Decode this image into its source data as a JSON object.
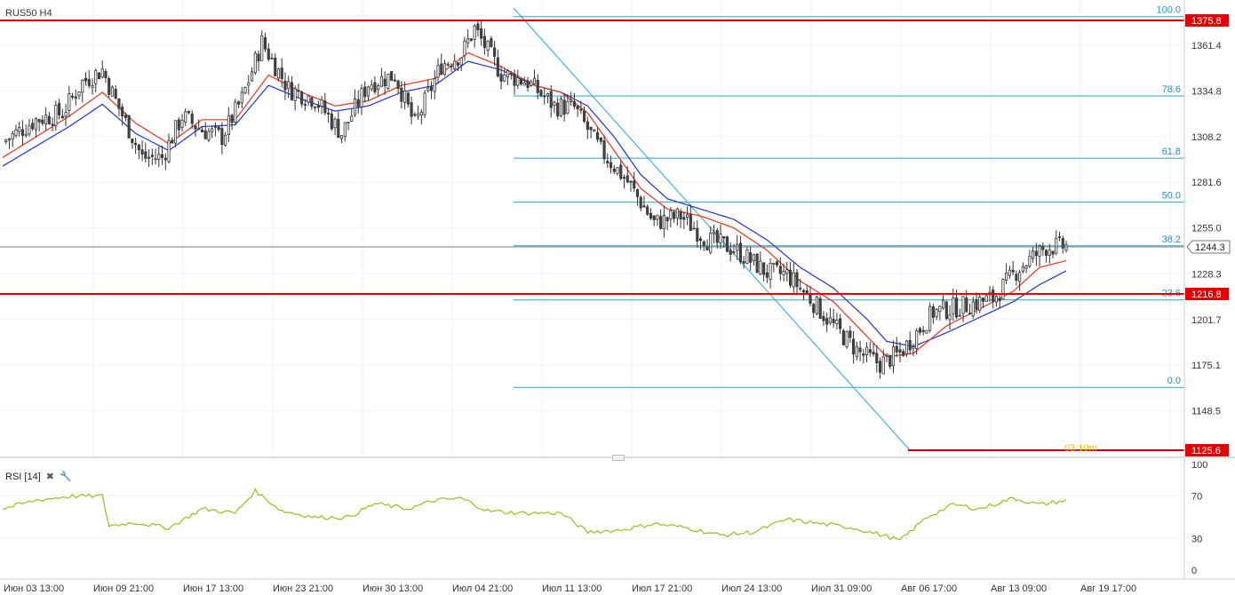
{
  "chart": {
    "symbol": "RUS50 H4",
    "current_price": "1244.3",
    "countdown": "03:10m"
  },
  "price_axis": {
    "ticks": [
      "1361.4",
      "1334.8",
      "1308.2",
      "1281.6",
      "1255.0",
      "1228.3",
      "1201.7",
      "1175.1",
      "1148.5"
    ],
    "resistance_label": "1375.8",
    "support_label": "1216.8",
    "low_label": "1125.6"
  },
  "fibonacci": {
    "levels": [
      {
        "label": "100.0",
        "value": 1378
      },
      {
        "label": "78.6",
        "value": 1331.8
      },
      {
        "label": "61.8",
        "value": 1295.6
      },
      {
        "label": "50.0",
        "value": 1270
      },
      {
        "label": "38.2",
        "value": 1244.6
      },
      {
        "label": "23.6",
        "value": 1213.1
      },
      {
        "label": "0.0",
        "value": 1162.2
      }
    ]
  },
  "time_axis": {
    "labels": [
      "Июн 03 13:00",
      "Июн 09 21:00",
      "Июн 17 13:00",
      "Июн 23 21:00",
      "Июн 30 13:00",
      "Июл 04 21:00",
      "Июл 11 13:00",
      "Июл 17 21:00",
      "Июл 24 13:00",
      "Июл 31 09:00",
      "Авг 06 17:00",
      "Авг 13 09:00",
      "Авг 19 17:00"
    ]
  },
  "rsi": {
    "title": "RSI [14]",
    "close_icon": "close-icon",
    "settings_icon": "wrench-icon",
    "ticks": [
      "100",
      "70",
      "30",
      "0"
    ],
    "levels": [
      70,
      30
    ]
  },
  "colors": {
    "bull_candle": "#ffffff",
    "bear_candle": "#444444",
    "candle_outline": "#333333",
    "ema_fast": "#e8321f",
    "ema_slow": "#2233cc",
    "fib_line": "#2aa4d0",
    "fib_label": "#2a90c0",
    "support_line": "#dd0000",
    "rsi_line": "#99bb22",
    "countdown": "#e8b800",
    "grid": "#f0f0f0"
  },
  "chart_data": {
    "type": "candlestick",
    "instrument": "RUS50",
    "timeframe": "H4",
    "x_labels": [
      "Июн 03 13:00",
      "Июн 09 21:00",
      "Июн 17 13:00",
      "Июн 23 21:00",
      "Июн 30 13:00",
      "Июл 04 21:00",
      "Июл 11 13:00",
      "Июл 17 21:00",
      "Июл 24 13:00",
      "Июл 31 09:00",
      "Авг 06 17:00",
      "Авг 13 09:00",
      "Авг 19 17:00"
    ],
    "y_range": [
      1118,
      1384
    ],
    "close_path_anchors": [
      [
        0,
        1305
      ],
      [
        10,
        1318
      ],
      [
        18,
        1322
      ],
      [
        24,
        1340
      ],
      [
        30,
        1347
      ],
      [
        34,
        1329
      ],
      [
        42,
        1296
      ],
      [
        48,
        1296
      ],
      [
        54,
        1320
      ],
      [
        60,
        1312
      ],
      [
        66,
        1308
      ],
      [
        72,
        1330
      ],
      [
        78,
        1363
      ],
      [
        86,
        1336
      ],
      [
        94,
        1330
      ],
      [
        102,
        1310
      ],
      [
        110,
        1339
      ],
      [
        118,
        1344
      ],
      [
        124,
        1315
      ],
      [
        132,
        1350
      ],
      [
        138,
        1356
      ],
      [
        142,
        1371
      ],
      [
        150,
        1345
      ],
      [
        158,
        1340
      ],
      [
        166,
        1326
      ],
      [
        172,
        1325
      ],
      [
        180,
        1300
      ],
      [
        188,
        1282
      ],
      [
        196,
        1258
      ],
      [
        204,
        1262
      ],
      [
        212,
        1248
      ],
      [
        220,
        1243
      ],
      [
        230,
        1229
      ],
      [
        236,
        1228
      ],
      [
        242,
        1216
      ],
      [
        250,
        1198
      ],
      [
        258,
        1182
      ],
      [
        264,
        1176
      ],
      [
        270,
        1182
      ],
      [
        280,
        1206
      ],
      [
        290,
        1210
      ],
      [
        298,
        1214
      ],
      [
        306,
        1232
      ],
      [
        314,
        1244
      ],
      [
        320,
        1244.3
      ]
    ],
    "ema_fast_anchors": [
      [
        0,
        1296
      ],
      [
        20,
        1320
      ],
      [
        30,
        1334
      ],
      [
        40,
        1316
      ],
      [
        50,
        1304
      ],
      [
        60,
        1318
      ],
      [
        70,
        1318
      ],
      [
        80,
        1344
      ],
      [
        90,
        1334
      ],
      [
        100,
        1326
      ],
      [
        110,
        1329
      ],
      [
        120,
        1338
      ],
      [
        130,
        1342
      ],
      [
        140,
        1357
      ],
      [
        150,
        1349
      ],
      [
        160,
        1338
      ],
      [
        168,
        1334
      ],
      [
        176,
        1322
      ],
      [
        184,
        1300
      ],
      [
        192,
        1278
      ],
      [
        200,
        1266
      ],
      [
        210,
        1262
      ],
      [
        220,
        1255
      ],
      [
        230,
        1242
      ],
      [
        240,
        1224
      ],
      [
        250,
        1212
      ],
      [
        260,
        1192
      ],
      [
        266,
        1180
      ],
      [
        274,
        1182
      ],
      [
        284,
        1198
      ],
      [
        294,
        1208
      ],
      [
        304,
        1218
      ],
      [
        312,
        1232
      ],
      [
        320,
        1236
      ]
    ],
    "ema_slow_anchors": [
      [
        0,
        1291
      ],
      [
        20,
        1314
      ],
      [
        30,
        1327
      ],
      [
        40,
        1310
      ],
      [
        50,
        1300
      ],
      [
        60,
        1314
      ],
      [
        70,
        1315
      ],
      [
        80,
        1338
      ],
      [
        90,
        1330
      ],
      [
        100,
        1323
      ],
      [
        110,
        1326
      ],
      [
        120,
        1334
      ],
      [
        130,
        1338
      ],
      [
        140,
        1352
      ],
      [
        150,
        1347
      ],
      [
        160,
        1338
      ],
      [
        168,
        1334
      ],
      [
        176,
        1326
      ],
      [
        184,
        1308
      ],
      [
        192,
        1286
      ],
      [
        200,
        1272
      ],
      [
        210,
        1266
      ],
      [
        220,
        1260
      ],
      [
        230,
        1248
      ],
      [
        240,
        1232
      ],
      [
        250,
        1220
      ],
      [
        260,
        1202
      ],
      [
        266,
        1189
      ],
      [
        274,
        1186
      ],
      [
        284,
        1194
      ],
      [
        294,
        1203
      ],
      [
        304,
        1212
      ],
      [
        312,
        1222
      ],
      [
        320,
        1230
      ]
    ],
    "rsi_anchors": [
      [
        0,
        58
      ],
      [
        10,
        66
      ],
      [
        20,
        70
      ],
      [
        30,
        70
      ],
      [
        32,
        42
      ],
      [
        40,
        45
      ],
      [
        50,
        40
      ],
      [
        60,
        58
      ],
      [
        70,
        54
      ],
      [
        76,
        75
      ],
      [
        84,
        56
      ],
      [
        94,
        50
      ],
      [
        104,
        50
      ],
      [
        112,
        63
      ],
      [
        122,
        58
      ],
      [
        130,
        66
      ],
      [
        138,
        68
      ],
      [
        146,
        56
      ],
      [
        156,
        54
      ],
      [
        168,
        54
      ],
      [
        176,
        36
      ],
      [
        186,
        38
      ],
      [
        196,
        44
      ],
      [
        206,
        40
      ],
      [
        216,
        33
      ],
      [
        226,
        36
      ],
      [
        236,
        48
      ],
      [
        246,
        44
      ],
      [
        256,
        40
      ],
      [
        266,
        32
      ],
      [
        270,
        28
      ],
      [
        278,
        50
      ],
      [
        286,
        62
      ],
      [
        294,
        58
      ],
      [
        304,
        68
      ],
      [
        312,
        62
      ],
      [
        320,
        66
      ]
    ]
  }
}
